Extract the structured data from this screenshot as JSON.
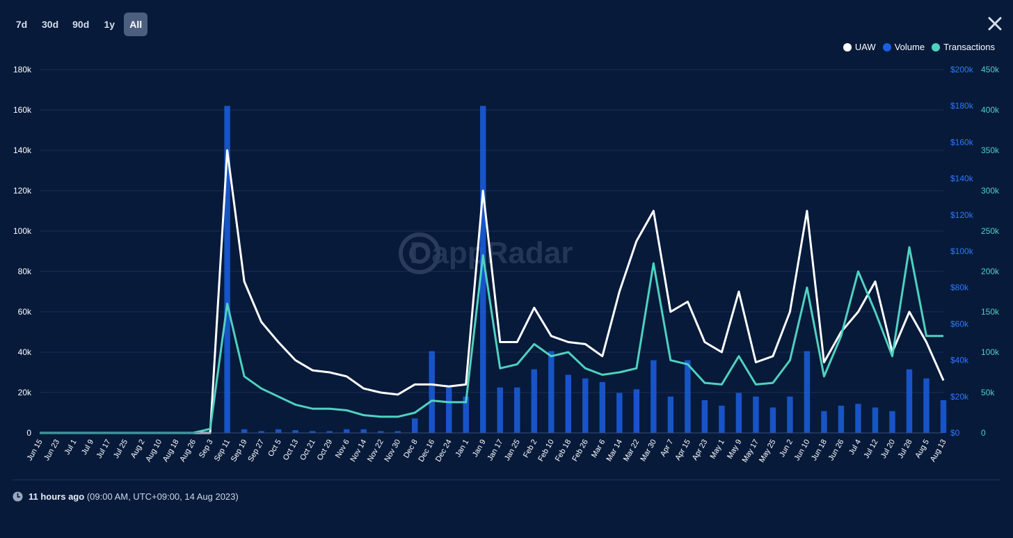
{
  "range_tabs": [
    {
      "label": "7d",
      "active": false
    },
    {
      "label": "30d",
      "active": false
    },
    {
      "label": "90d",
      "active": false
    },
    {
      "label": "1y",
      "active": false
    },
    {
      "label": "All",
      "active": true
    }
  ],
  "close_icon": "close-icon",
  "legend": [
    {
      "label": "UAW",
      "color": "#ffffff"
    },
    {
      "label": "Volume",
      "color": "#1b5fe0"
    },
    {
      "label": "Transactions",
      "color": "#4fd1c0"
    }
  ],
  "watermark": "DappRadar",
  "footer": {
    "relative": "11 hours ago",
    "absolute": "(09:00 AM, UTC+09:00, 14 Aug 2023)",
    "icon": "clock-icon"
  },
  "chart_data": {
    "type": "line",
    "x_ticks": [
      "Jun 15",
      "Jun 23",
      "Jul 1",
      "Jul 9",
      "Jul 17",
      "Jul 25",
      "Aug 2",
      "Aug 10",
      "Aug 18",
      "Aug 26",
      "Sep 3",
      "Sep 11",
      "Sep 19",
      "Sep 27",
      "Oct 5",
      "Oct 13",
      "Oct 21",
      "Oct 29",
      "Nov 6",
      "Nov 14",
      "Nov 22",
      "Nov 30",
      "Dec 8",
      "Dec 16",
      "Dec 24",
      "Jan 1",
      "Jan 9",
      "Jan 17",
      "Jan 25",
      "Feb 2",
      "Feb 10",
      "Feb 18",
      "Feb 26",
      "Mar 6",
      "Mar 14",
      "Mar 22",
      "Mar 30",
      "Apr 7",
      "Apr 15",
      "Apr 23",
      "May 1",
      "May 9",
      "May 17",
      "May 25",
      "Jun 2",
      "Jun 10",
      "Jun 18",
      "Jun 26",
      "Jul 4",
      "Jul 12",
      "Jul 20",
      "Jul 28",
      "Aug 5",
      "Aug 13"
    ],
    "y_left": {
      "ticks": [
        "0",
        "20k",
        "40k",
        "60k",
        "80k",
        "100k",
        "120k",
        "140k",
        "160k",
        "180k"
      ],
      "range": [
        0,
        180000
      ]
    },
    "y_right_volume": {
      "ticks": [
        "$0",
        "$20k",
        "$40k",
        "$60k",
        "$80k",
        "$100k",
        "$120k",
        "$140k",
        "$160k",
        "$180k",
        "$200k"
      ],
      "range": [
        0,
        200000
      ]
    },
    "y_right_transactions": {
      "ticks": [
        "0",
        "50k",
        "100k",
        "150k",
        "200k",
        "250k",
        "300k",
        "350k",
        "400k",
        "450k"
      ],
      "range": [
        0,
        450000
      ]
    },
    "grid": true,
    "legend_position": "top-right",
    "series": [
      {
        "name": "UAW",
        "kind": "line",
        "axis": "left",
        "color": "#ffffff",
        "values": [
          0,
          0,
          0,
          0,
          0,
          0,
          0,
          0,
          0,
          0,
          0,
          140000,
          75000,
          55000,
          45000,
          36000,
          31000,
          30000,
          28000,
          22000,
          20000,
          19000,
          24000,
          24000,
          23000,
          24000,
          120000,
          45000,
          45000,
          62000,
          48000,
          45000,
          44000,
          38000,
          70000,
          95000,
          110000,
          60000,
          65000,
          45000,
          40000,
          70000,
          35000,
          38000,
          60000,
          110000,
          35000,
          50000,
          60000,
          75000,
          40000,
          60000,
          45000,
          26000
        ]
      },
      {
        "name": "Transactions",
        "kind": "line",
        "axis": "right_transactions",
        "color": "#4fd1c0",
        "values": [
          0,
          0,
          0,
          0,
          0,
          0,
          0,
          0,
          0,
          0,
          5000,
          160000,
          70000,
          55000,
          45000,
          35000,
          30000,
          30000,
          28000,
          22000,
          20000,
          20000,
          25000,
          40000,
          38000,
          38000,
          220000,
          80000,
          85000,
          110000,
          95000,
          100000,
          80000,
          72000,
          75000,
          80000,
          210000,
          90000,
          85000,
          62000,
          60000,
          95000,
          60000,
          62000,
          90000,
          180000,
          70000,
          120000,
          200000,
          150000,
          95000,
          230000,
          120000,
          120000
        ]
      },
      {
        "name": "Volume",
        "kind": "bar",
        "axis": "right_volume",
        "color": "#1b5fe0",
        "values": [
          0,
          0,
          0,
          0,
          0,
          0,
          0,
          0,
          0,
          0,
          0,
          180000,
          2000,
          1000,
          2000,
          1500,
          1000,
          1000,
          2000,
          2000,
          1000,
          1000,
          8000,
          45000,
          25000,
          20000,
          180000,
          25000,
          25000,
          35000,
          45000,
          32000,
          30000,
          28000,
          22000,
          24000,
          40000,
          20000,
          40000,
          18000,
          15000,
          22000,
          20000,
          14000,
          20000,
          45000,
          12000,
          15000,
          16000,
          14000,
          12000,
          35000,
          30000,
          18000
        ]
      }
    ]
  }
}
